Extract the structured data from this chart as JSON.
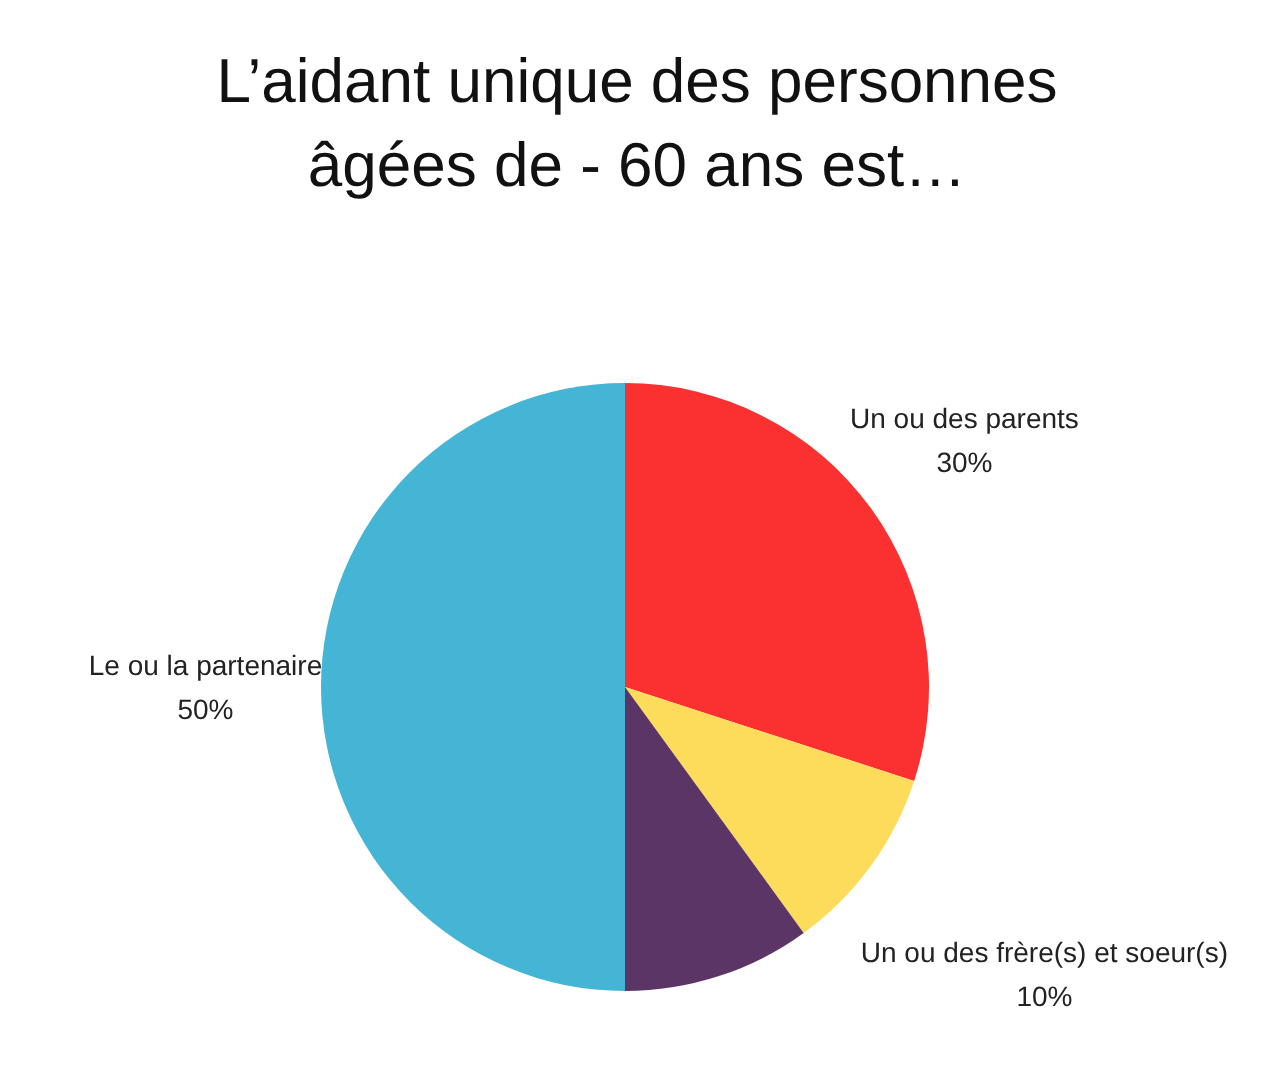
{
  "chart_data": {
    "type": "pie",
    "title": "L’aidant unique des personnes âgées de - 60 ans est…",
    "categories": [
      "Un ou des parents",
      "Un ou des frère(s) et soeur(s)",
      null,
      "Le ou la partenaire"
    ],
    "values": [
      30,
      10,
      10,
      50
    ],
    "value_labels": [
      "30%",
      "10%",
      null,
      "50%"
    ],
    "colors": [
      "#fb3030",
      "#fddc5c",
      "#5a3566",
      "#45b5d6"
    ]
  }
}
